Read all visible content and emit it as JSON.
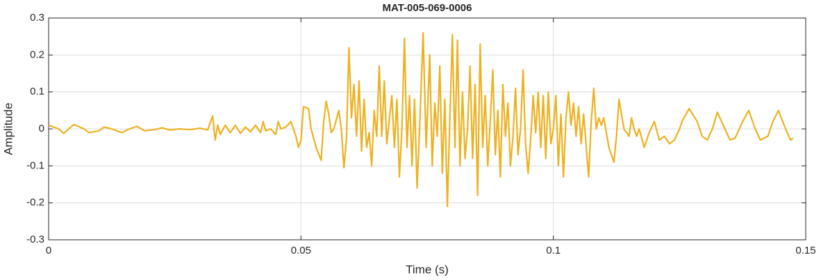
{
  "chart_data": {
    "type": "line",
    "title": "MAT-005-069-0006",
    "xlabel": "Time (s)",
    "ylabel": "Amplitude",
    "color": "#EDB120",
    "grid": true,
    "xlim": [
      0,
      0.15
    ],
    "xticks": [
      0,
      0.05,
      0.1,
      0.15
    ],
    "ylim": [
      -0.3,
      0.3
    ],
    "yticks": [
      -0.3,
      -0.2,
      -0.1,
      0,
      0.1,
      0.2,
      0.3
    ],
    "x": [
      0,
      0.002,
      0.003,
      0.005,
      0.007,
      0.008,
      0.01,
      0.011,
      0.0125,
      0.0145,
      0.016,
      0.0175,
      0.019,
      0.021,
      0.0225,
      0.024,
      0.026,
      0.028,
      0.03,
      0.0315,
      0.0325,
      0.033,
      0.0335,
      0.034,
      0.035,
      0.036,
      0.037,
      0.038,
      0.039,
      0.04,
      0.041,
      0.042,
      0.0425,
      0.043,
      0.044,
      0.045,
      0.0455,
      0.046,
      0.047,
      0.048,
      0.049,
      0.0495,
      0.05,
      0.0505,
      0.0515,
      0.052,
      0.053,
      0.054,
      0.0545,
      0.055,
      0.0555,
      0.056,
      0.0565,
      0.0575,
      0.058,
      0.0585,
      0.059,
      0.0595,
      0.06,
      0.0605,
      0.061,
      0.0615,
      0.062,
      0.0625,
      0.063,
      0.0635,
      0.064,
      0.0645,
      0.065,
      0.0655,
      0.066,
      0.0665,
      0.067,
      0.068,
      0.0685,
      0.069,
      0.0695,
      0.07,
      0.0705,
      0.071,
      0.0715,
      0.072,
      0.0725,
      0.073,
      0.0735,
      0.0742,
      0.0748,
      0.0755,
      0.076,
      0.0765,
      0.077,
      0.0775,
      0.078,
      0.0785,
      0.079,
      0.0795,
      0.08,
      0.0805,
      0.081,
      0.0815,
      0.082,
      0.0825,
      0.083,
      0.0835,
      0.084,
      0.0845,
      0.085,
      0.0855,
      0.086,
      0.0865,
      0.087,
      0.0875,
      0.088,
      0.0885,
      0.089,
      0.0895,
      0.09,
      0.0905,
      0.091,
      0.0915,
      0.092,
      0.0925,
      0.093,
      0.0935,
      0.094,
      0.0945,
      0.095,
      0.0955,
      0.096,
      0.0965,
      0.097,
      0.0975,
      0.098,
      0.0985,
      0.099,
      0.0995,
      0.1,
      0.1005,
      0.101,
      0.1015,
      0.102,
      0.1025,
      0.103,
      0.1035,
      0.104,
      0.1045,
      0.105,
      0.1055,
      0.106,
      0.107,
      0.1075,
      0.108,
      0.1085,
      0.109,
      0.1095,
      0.11,
      0.111,
      0.112,
      0.1125,
      0.113,
      0.114,
      0.115,
      0.1155,
      0.116,
      0.1165,
      0.117,
      0.118,
      0.119,
      0.12,
      0.121,
      0.122,
      0.123,
      0.124,
      0.125,
      0.1255,
      0.1269,
      0.1285,
      0.1295,
      0.1305,
      0.1315,
      0.1325,
      0.134,
      0.135,
      0.136,
      0.1375,
      0.1387,
      0.14,
      0.141,
      0.1425,
      0.1435,
      0.1446,
      0.146,
      0.147,
      0.1475
    ],
    "values": [
      0.01,
      0.0,
      -0.012,
      0.012,
      0.0,
      -0.01,
      -0.005,
      0.005,
      0.0,
      -0.01,
      0.0,
      0.007,
      -0.005,
      -0.002,
      0.003,
      -0.003,
      0.0,
      -0.002,
      0.002,
      -0.003,
      0.035,
      -0.03,
      0.01,
      -0.015,
      0.01,
      -0.01,
      0.01,
      -0.012,
      0.005,
      -0.008,
      0.01,
      -0.01,
      0.02,
      -0.005,
      0.0,
      -0.015,
      0.02,
      0.0,
      0.005,
      0.02,
      -0.02,
      -0.05,
      -0.03,
      0.06,
      0.055,
      0.0,
      -0.05,
      -0.085,
      0.02,
      0.075,
      0.04,
      -0.01,
      0.0,
      0.05,
      0.0,
      -0.105,
      -0.03,
      0.22,
      0.03,
      0.12,
      -0.02,
      0.13,
      -0.06,
      0.08,
      -0.05,
      -0.01,
      -0.1,
      0.05,
      -0.02,
      0.17,
      -0.02,
      0.13,
      -0.04,
      0.09,
      -0.05,
      0.08,
      -0.13,
      0.0,
      0.245,
      -0.05,
      0.09,
      -0.1,
      0.08,
      -0.16,
      0.0,
      0.26,
      -0.05,
      0.2,
      -0.1,
      0.07,
      -0.02,
      0.17,
      -0.12,
      0.08,
      -0.21,
      0.03,
      0.255,
      -0.05,
      0.24,
      -0.1,
      0.1,
      -0.08,
      0.0,
      0.17,
      -0.08,
      0.12,
      -0.18,
      0.23,
      -0.05,
      0.09,
      -0.1,
      0.02,
      0.16,
      -0.07,
      0.05,
      -0.13,
      0.12,
      -0.02,
      0.07,
      -0.1,
      -0.02,
      0.11,
      -0.07,
      0.0,
      0.16,
      -0.04,
      -0.12,
      -0.03,
      0.09,
      -0.01,
      0.1,
      -0.05,
      0.09,
      -0.08,
      0.1,
      -0.04,
      0.0,
      0.09,
      -0.1,
      0.04,
      -0.13,
      0.03,
      0.1,
      0.01,
      0.07,
      -0.02,
      0.06,
      -0.04,
      0.04,
      -0.13,
      0.02,
      0.11,
      0.0,
      0.03,
      0.01,
      0.03,
      -0.05,
      -0.09,
      -0.02,
      0.08,
      0.0,
      -0.02,
      0.03,
      0.0,
      -0.02,
      0.0,
      -0.05,
      -0.01,
      0.02,
      -0.03,
      -0.02,
      -0.04,
      -0.03,
      0.0,
      0.02,
      0.055,
      0.02,
      -0.02,
      -0.03,
      0.0,
      0.045,
      0.0,
      -0.03,
      -0.025,
      0.02,
      0.05,
      0.0,
      -0.03,
      -0.02,
      0.02,
      0.05,
      0.0,
      -0.03,
      -0.025
    ]
  }
}
